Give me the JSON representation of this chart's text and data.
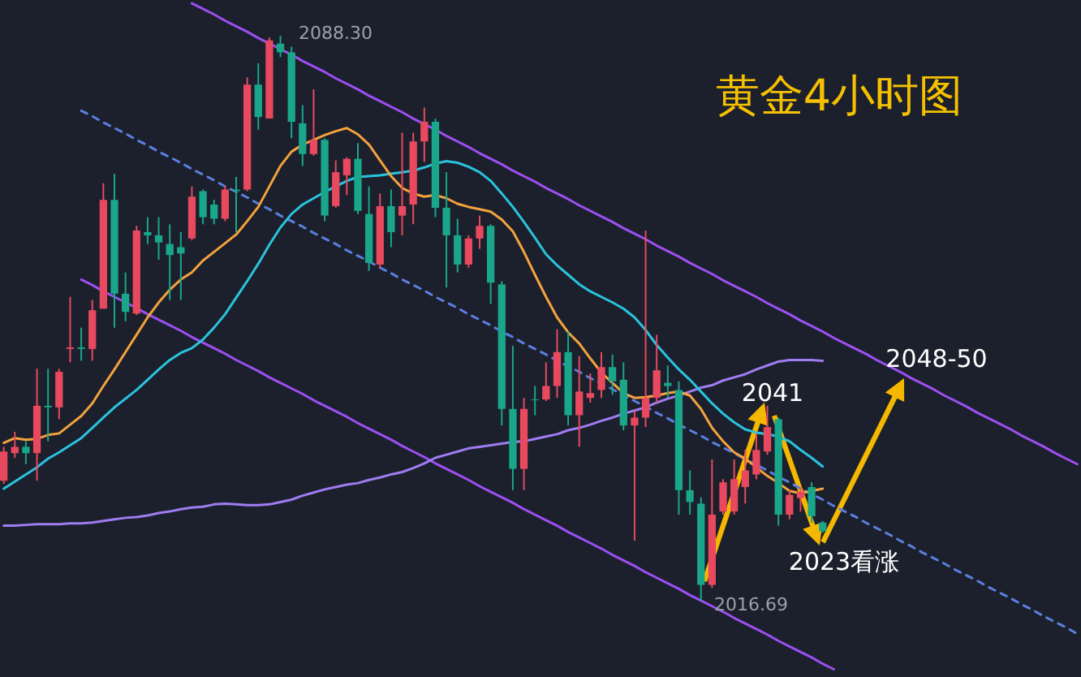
{
  "chart_data": {
    "type": "candlestick",
    "title": "黄金4小时图",
    "tick_labels": false,
    "categories": [
      null,
      null,
      null,
      null,
      null,
      null,
      null,
      null,
      null,
      null,
      null,
      null,
      null,
      null,
      null,
      null,
      null,
      null,
      null,
      null,
      null,
      null,
      null,
      null,
      null,
      null,
      null,
      null,
      null,
      null,
      null,
      null,
      null,
      null,
      null,
      null,
      null,
      null,
      null,
      null,
      null,
      null,
      null,
      null,
      null,
      null,
      null,
      null,
      null,
      null,
      null,
      null,
      null,
      null,
      null,
      null,
      null,
      null,
      null,
      null,
      null,
      null,
      null,
      null,
      null,
      null,
      null,
      null,
      null,
      null,
      null,
      null,
      null,
      null,
      null,
      null,
      null,
      null,
      null,
      null,
      null,
      null,
      null,
      null,
      null,
      null,
      null,
      null,
      null,
      null,
      null,
      null,
      null,
      null,
      null,
      null,
      null,
      null
    ],
    "ohlc": [
      [
        2031.9,
        2036.2,
        2031.5,
        2035.6
      ],
      [
        2035.4,
        2038.1,
        2034.8,
        2036.2
      ],
      [
        2036.2,
        2036.9,
        2034.0,
        2035.4
      ],
      [
        2035.4,
        2046.1,
        2031.9,
        2041.4
      ],
      [
        2041.4,
        2046.1,
        2036.9,
        2041.2
      ],
      [
        2041.2,
        2046.1,
        2039.7,
        2045.7
      ],
      [
        2048.6,
        2055.2,
        2046.9,
        2048.8
      ],
      [
        2048.8,
        2051.3,
        2047.1,
        2048.6
      ],
      [
        2048.6,
        2054.8,
        2047.1,
        2053.5
      ],
      [
        2053.7,
        2069.6,
        2053.7,
        2067.5
      ],
      [
        2067.5,
        2070.8,
        2051.3,
        2055.6
      ],
      [
        2055.6,
        2058.3,
        2052.1,
        2053.3
      ],
      [
        2053.1,
        2064.2,
        2052.9,
        2063.6
      ],
      [
        2063.4,
        2065.3,
        2061.9,
        2063.0
      ],
      [
        2063.0,
        2065.3,
        2059.9,
        2062.1
      ],
      [
        2061.9,
        2064.4,
        2054.8,
        2060.5
      ],
      [
        2061.5,
        2063.4,
        2054.8,
        2060.7
      ],
      [
        2062.6,
        2069.2,
        2062.4,
        2067.9
      ],
      [
        2068.6,
        2068.8,
        2064.4,
        2065.3
      ],
      [
        2066.9,
        2067.5,
        2064.4,
        2065.1
      ],
      [
        2065.1,
        2069.3,
        2064.8,
        2068.8
      ],
      [
        2068.8,
        2070.4,
        2063.4,
        2068.6
      ],
      [
        2068.8,
        2083.0,
        2068.6,
        2082.1
      ],
      [
        2082.1,
        2084.8,
        2076.4,
        2078.0
      ],
      [
        2077.8,
        2088.1,
        2077.8,
        2087.7
      ],
      [
        2087.3,
        2088.3,
        2085.6,
        2086.2
      ],
      [
        2086.2,
        2086.9,
        2075.3,
        2077.4
      ],
      [
        2077.2,
        2079.5,
        2071.8,
        2073.3
      ],
      [
        2073.3,
        2081.5,
        2073.1,
        2075.1
      ],
      [
        2075.1,
        2075.3,
        2064.8,
        2065.5
      ],
      [
        2066.7,
        2072.5,
        2066.5,
        2071.0
      ],
      [
        2070.6,
        2072.9,
        2068.1,
        2072.7
      ],
      [
        2072.7,
        2074.7,
        2065.7,
        2066.1
      ],
      [
        2065.7,
        2069.2,
        2058.5,
        2059.5
      ],
      [
        2059.3,
        2068.3,
        2058.9,
        2066.7
      ],
      [
        2066.7,
        2068.8,
        2061.5,
        2063.4
      ],
      [
        2065.5,
        2076.0,
        2063.0,
        2066.7
      ],
      [
        2066.9,
        2076.0,
        2064.4,
        2074.9
      ],
      [
        2074.9,
        2079.2,
        2072.3,
        2077.4
      ],
      [
        2077.4,
        2077.8,
        2065.3,
        2066.5
      ],
      [
        2066.5,
        2071.0,
        2056.4,
        2063.0
      ],
      [
        2063.0,
        2065.1,
        2058.3,
        2059.3
      ],
      [
        2059.3,
        2063.0,
        2058.9,
        2062.6
      ],
      [
        2062.6,
        2065.5,
        2061.3,
        2064.2
      ],
      [
        2064.2,
        2064.4,
        2054.3,
        2057.0
      ],
      [
        2056.8,
        2057.2,
        2038.9,
        2041.0
      ],
      [
        2041.0,
        2049.0,
        2030.7,
        2033.4
      ],
      [
        2033.4,
        2042.4,
        2030.7,
        2041.0
      ],
      [
        2042.2,
        2043.9,
        2040.2,
        2042.1
      ],
      [
        2042.2,
        2046.9,
        2042.0,
        2043.9
      ],
      [
        2043.9,
        2051.1,
        2042.4,
        2048.2
      ],
      [
        2048.2,
        2050.8,
        2038.9,
        2040.2
      ],
      [
        2040.2,
        2047.7,
        2036.2,
        2043.2
      ],
      [
        2042.4,
        2045.5,
        2041.8,
        2043.0
      ],
      [
        2043.4,
        2048.2,
        2042.4,
        2046.3
      ],
      [
        2046.3,
        2047.9,
        2042.8,
        2044.5
      ],
      [
        2044.7,
        2046.9,
        2038.3,
        2038.9
      ],
      [
        2038.9,
        2040.8,
        2024.3,
        2039.9
      ],
      [
        2039.9,
        2063.6,
        2038.7,
        2042.4
      ],
      [
        2042.4,
        2050.4,
        2041.8,
        2045.9
      ],
      [
        2044.3,
        2046.5,
        2042.4,
        2043.9
      ],
      [
        2043.4,
        2044.5,
        2027.6,
        2030.7
      ],
      [
        2030.7,
        2033.2,
        2027.6,
        2029.2
      ],
      [
        2029.0,
        2029.8,
        2016.69,
        2018.7
      ],
      [
        2018.7,
        2034.6,
        2018.3,
        2027.6
      ],
      [
        2028.0,
        2032.1,
        2027.6,
        2031.7
      ],
      [
        2028.0,
        2034.6,
        2027.6,
        2032.1
      ],
      [
        2031.1,
        2035.8,
        2029.0,
        2033.2
      ],
      [
        2032.7,
        2037.9,
        2032.1,
        2035.8
      ],
      [
        2035.6,
        2041.4,
        2035.2,
        2038.7
      ],
      [
        2039.7,
        2039.9,
        2026.2,
        2027.6
      ],
      [
        2027.6,
        2030.7,
        2027.0,
        2030.1
      ],
      [
        2029.7,
        2031.1,
        2028.0,
        2030.5
      ],
      [
        2031.1,
        2031.7,
        2026.6,
        2027.4
      ],
      [
        2026.6,
        2026.8,
        2025.3,
        2025.5
      ],
      null,
      null,
      null,
      null,
      null,
      null,
      null,
      null,
      null,
      null,
      null,
      null,
      null,
      null,
      null,
      null,
      null,
      null,
      null,
      null,
      null,
      null,
      null
    ],
    "colors": [
      "#e8495e",
      "#e8495e",
      "#19a68a",
      "#e8495e",
      "#19a68a",
      "#e8495e",
      "#e8495e",
      "#19a68a",
      "#e8495e",
      "#e8495e",
      "#19a68a",
      "#19a68a",
      "#e8495e",
      "#19a68a",
      "#19a68a",
      "#19a68a",
      "#19a68a",
      "#e8495e",
      "#19a68a",
      "#19a68a",
      "#e8495e",
      "#19a68a",
      "#e8495e",
      "#19a68a",
      "#e8495e",
      "#19a68a",
      "#19a68a",
      "#19a68a",
      "#e8495e",
      "#19a68a",
      "#e8495e",
      "#e8495e",
      "#19a68a",
      "#19a68a",
      "#e8495e",
      "#19a68a",
      "#e8495e",
      "#e8495e",
      "#e8495e",
      "#19a68a",
      "#19a68a",
      "#19a68a",
      "#e8495e",
      "#e8495e",
      "#19a68a",
      "#19a68a",
      "#19a68a",
      "#e8495e",
      "#19a68a",
      "#e8495e",
      "#e8495e",
      "#19a68a",
      "#e8495e",
      "#e8495e",
      "#e8495e",
      "#19a68a",
      "#19a68a",
      "#e8495e",
      "#e8495e",
      "#e8495e",
      "#19a68a",
      "#19a68a",
      "#19a68a",
      "#19a68a",
      "#e8495e",
      "#e8495e",
      "#e8495e",
      "#e8495e",
      "#e8495e",
      "#e8495e",
      "#19a68a",
      "#e8495e",
      "#e8495e",
      "#19a68a",
      "#19a68a",
      null,
      null,
      null,
      null,
      null,
      null,
      null,
      null,
      null,
      null,
      null,
      null,
      null,
      null,
      null,
      null,
      null,
      null,
      null,
      null,
      null,
      null,
      null
    ],
    "series": [
      {
        "type": "line",
        "color": "#9d4ff2",
        "values": [
          null,
          null,
          null,
          null,
          null,
          null,
          null,
          null,
          null,
          null,
          null,
          null,
          null,
          null,
          null,
          null,
          null,
          2092.4,
          2091.7,
          2091.0,
          2090.2,
          2089.5,
          2088.8,
          2088.0,
          2087.3,
          2086.6,
          2085.9,
          2085.1,
          2084.4,
          2083.7,
          2082.9,
          2082.2,
          2081.5,
          2080.7,
          2080.0,
          2079.3,
          2078.6,
          2077.8,
          2077.1,
          2076.4,
          2075.6,
          2074.9,
          2074.2,
          2073.4,
          2072.7,
          2072.0,
          2071.2,
          2070.5,
          2069.8,
          2069.0,
          2068.3,
          2067.6,
          2066.8,
          2066.1,
          2065.4,
          2064.7,
          2063.9,
          2063.2,
          2062.5,
          2061.7,
          2061.0,
          2060.3,
          2059.5,
          2058.8,
          2058.1,
          2057.3,
          2056.6,
          2055.9,
          2055.2,
          2054.4,
          2053.7,
          2053.0,
          2052.2,
          2051.5,
          2050.8,
          2050.0,
          2049.3,
          2048.6,
          2047.9,
          2047.1,
          2046.4,
          2045.7,
          2044.9,
          2044.2,
          2043.5,
          2042.7,
          2042.0,
          2041.3,
          2040.5,
          2039.8,
          2039.1,
          2038.4,
          2037.6,
          2036.9,
          2036.2,
          2035.4,
          2034.7,
          2034.0
        ]
      },
      {
        "type": "line",
        "color": "#9d4ff2",
        "values": [
          null,
          null,
          null,
          null,
          null,
          null,
          null,
          2057.4,
          2056.7,
          2055.9,
          2055.2,
          2054.5,
          2053.8,
          2053.0,
          2052.3,
          2051.6,
          2050.9,
          2050.1,
          2049.4,
          2048.7,
          2048.0,
          2047.2,
          2046.5,
          2045.8,
          2045.0,
          2044.3,
          2043.6,
          2042.9,
          2042.1,
          2041.4,
          2040.7,
          2040.0,
          2039.2,
          2038.5,
          2037.8,
          2037.1,
          2036.3,
          2035.6,
          2034.9,
          2034.1,
          2033.4,
          2032.7,
          2032.0,
          2031.2,
          2030.5,
          2029.8,
          2029.1,
          2028.3,
          2027.6,
          2026.9,
          2026.2,
          2025.4,
          2024.7,
          2024.0,
          2023.3,
          2022.5,
          2021.8,
          2021.1,
          2020.3,
          2019.6,
          2018.9,
          2018.2,
          2017.4,
          2016.7,
          2016.0,
          2015.3,
          2014.5,
          2013.8,
          2013.1,
          2012.4,
          2011.6,
          2010.9,
          2010.2,
          2009.5,
          2008.7,
          2008.0,
          null,
          null,
          null,
          null,
          null,
          null,
          null,
          null,
          null,
          null,
          null,
          null,
          null,
          null,
          null,
          null,
          null,
          null,
          null,
          null,
          null,
          null
        ]
      },
      {
        "type": "line",
        "color": "#5b7fe0",
        "line_style": "dashed",
        "values": [
          null,
          null,
          null,
          null,
          null,
          null,
          null,
          2078.8,
          2078.1,
          2077.3,
          2076.6,
          2075.9,
          2075.1,
          2074.4,
          2073.6,
          2072.9,
          2072.2,
          2071.4,
          2070.7,
          2070.0,
          2069.2,
          2068.5,
          2067.8,
          2067.0,
          2066.3,
          2065.5,
          2064.8,
          2064.1,
          2063.3,
          2062.6,
          2061.9,
          2061.1,
          2060.4,
          2059.7,
          2058.9,
          2058.2,
          2057.4,
          2056.7,
          2056.0,
          2055.2,
          2054.5,
          2053.8,
          2053.0,
          2052.3,
          2051.6,
          2050.8,
          2050.1,
          2049.3,
          2048.6,
          2047.9,
          2047.1,
          2046.4,
          2045.7,
          2044.9,
          2044.2,
          2043.5,
          2042.7,
          2042.0,
          2041.3,
          2040.5,
          2039.8,
          2039.0,
          2038.3,
          2037.6,
          2036.8,
          2036.1,
          2035.4,
          2034.6,
          2033.9,
          2033.2,
          2032.4,
          2031.7,
          2030.9,
          2030.2,
          2029.5,
          2028.7,
          2028.0,
          2027.3,
          2026.5,
          2025.8,
          2025.1,
          2024.3,
          2023.6,
          2022.8,
          2022.1,
          2021.4,
          2020.6,
          2019.9,
          2019.2,
          2018.4,
          2017.7,
          2017.0,
          2016.2,
          2015.5,
          2014.7,
          2014.0,
          2013.3,
          2012.5
        ]
      },
      {
        "type": "line",
        "color": "#a07cf2",
        "values": [
          2026.2,
          2026.2,
          2026.3,
          2026.4,
          2026.4,
          2026.4,
          2026.5,
          2026.5,
          2026.6,
          2026.8,
          2027.0,
          2027.2,
          2027.3,
          2027.5,
          2027.8,
          2028.0,
          2028.3,
          2028.5,
          2028.6,
          2028.9,
          2029.0,
          2028.9,
          2028.8,
          2028.8,
          2028.9,
          2029.2,
          2029.5,
          2030.0,
          2030.4,
          2030.8,
          2031.1,
          2031.4,
          2031.6,
          2032.0,
          2032.3,
          2032.7,
          2033.0,
          2033.5,
          2034.1,
          2034.8,
          2035.2,
          2035.6,
          2036.0,
          2036.2,
          2036.4,
          2036.6,
          2036.8,
          2036.9,
          2037.2,
          2037.5,
          2037.8,
          2038.3,
          2038.6,
          2039.0,
          2039.5,
          2039.9,
          2040.4,
          2040.8,
          2041.2,
          2041.8,
          2042.3,
          2042.7,
          2043.2,
          2043.7,
          2044.0,
          2044.6,
          2045.0,
          2045.4,
          2046.0,
          2046.5,
          2047.0,
          2047.2,
          2047.2,
          2047.2,
          2047.1,
          null,
          null,
          null,
          null,
          null,
          null,
          null,
          null,
          null,
          null,
          null,
          null,
          null,
          null,
          null,
          null,
          null,
          null,
          null,
          null,
          null,
          null,
          null
        ]
      },
      {
        "type": "line",
        "color": "#2ac3de",
        "values": [
          2030.9,
          2031.8,
          2032.7,
          2033.6,
          2034.7,
          2035.5,
          2036.4,
          2037.3,
          2038.6,
          2039.9,
          2041.2,
          2042.3,
          2043.4,
          2044.7,
          2046.0,
          2047.2,
          2048.1,
          2048.7,
          2049.8,
          2051.3,
          2053.0,
          2055.1,
          2057.2,
          2059.4,
          2061.8,
          2064.0,
          2065.7,
          2066.9,
          2067.7,
          2068.5,
          2069.2,
          2069.9,
          2070.4,
          2070.5,
          2070.6,
          2070.8,
          2071.0,
          2071.2,
          2071.6,
          2072.1,
          2072.4,
          2072.2,
          2071.7,
          2071.0,
          2069.9,
          2068.3,
          2066.6,
          2064.7,
          2062.7,
          2060.6,
          2059.2,
          2058.0,
          2056.8,
          2055.9,
          2055.2,
          2054.5,
          2053.7,
          2052.6,
          2051.0,
          2049.1,
          2047.5,
          2046.0,
          2044.7,
          2043.2,
          2041.7,
          2040.4,
          2039.3,
          2038.4,
          2038.0,
          2037.8,
          2037.5,
          2036.9,
          2035.8,
          2034.8,
          2033.7,
          null,
          null,
          null,
          null,
          null,
          null,
          null,
          null,
          null,
          null,
          null,
          null,
          null,
          null,
          null,
          null,
          null,
          null,
          null,
          null,
          null,
          null,
          null
        ]
      },
      {
        "type": "line",
        "color": "#f5a23c",
        "values": [
          2036.7,
          2037.3,
          2037.1,
          2037.2,
          2037.7,
          2037.9,
          2039.0,
          2040.1,
          2041.7,
          2043.9,
          2046.0,
          2048.2,
          2050.4,
          2052.6,
          2054.5,
          2056.1,
          2057.4,
          2058.3,
          2059.8,
          2060.9,
          2062.0,
          2063.1,
          2064.8,
          2066.6,
          2069.2,
          2071.8,
          2073.6,
          2074.5,
          2075.1,
          2075.7,
          2076.2,
          2076.6,
          2075.8,
          2074.5,
          2072.5,
          2070.5,
          2069.0,
          2068.3,
          2067.9,
          2068.1,
          2067.7,
          2067.0,
          2066.6,
          2066.3,
          2066.0,
          2065.0,
          2063.5,
          2060.9,
          2058.0,
          2055.2,
          2052.6,
          2050.7,
          2049.3,
          2047.4,
          2045.6,
          2044.3,
          2043.0,
          2042.4,
          2042.5,
          2042.7,
          2043.0,
          2043.2,
          2042.7,
          2041.0,
          2038.6,
          2036.9,
          2035.5,
          2034.7,
          2033.6,
          2032.5,
          2031.6,
          2030.6,
          2030.3,
          2030.6,
          2030.9,
          null,
          null,
          null,
          null,
          null,
          null,
          null,
          null,
          null,
          null,
          null,
          null,
          null,
          null,
          null,
          null,
          null,
          null,
          null,
          null,
          null,
          null,
          null
        ]
      }
    ],
    "annotations": [
      "2088.30",
      "2016.69",
      "2041",
      "2048-50",
      "2023看涨"
    ]
  }
}
